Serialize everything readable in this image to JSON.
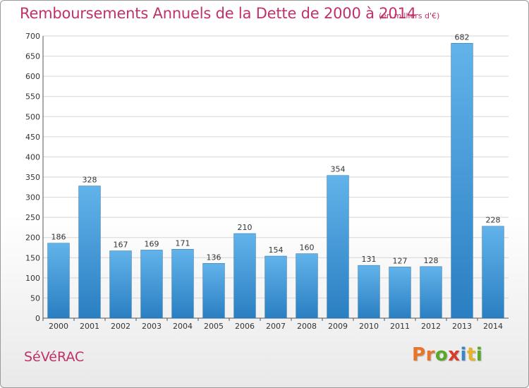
{
  "header": {
    "title": "Remboursements Annuels de la Dette de 2000 à 2014",
    "subtitle": "(en milliers d'€)"
  },
  "footer": {
    "commune": "SéVéRAC",
    "logo_letters": [
      "P",
      "r",
      "o",
      "x",
      "i",
      "t",
      "i"
    ],
    "logo_colors": [
      "#e8742a",
      "#e8742a",
      "#5aa829",
      "#d93b2b",
      "#3b86c6",
      "#e8b22a",
      "#5aa829"
    ]
  },
  "colors": {
    "accent": "#c0306a",
    "bar_light": "#62b3ea",
    "bar_dark": "#2a7fc2",
    "grid": "#d6d6d6"
  },
  "chart_data": {
    "type": "bar",
    "title": "Remboursements Annuels de la Dette de 2000 à 2014",
    "categories": [
      "2000",
      "2001",
      "2002",
      "2003",
      "2004",
      "2005",
      "2006",
      "2007",
      "2008",
      "2009",
      "2010",
      "2011",
      "2012",
      "2013",
      "2014"
    ],
    "values": [
      186,
      328,
      167,
      169,
      171,
      136,
      210,
      154,
      160,
      354,
      131,
      127,
      128,
      682,
      228
    ],
    "ylim": [
      0,
      700
    ],
    "yticks": [
      0,
      50,
      100,
      150,
      200,
      250,
      300,
      350,
      400,
      450,
      500,
      550,
      600,
      650,
      700
    ],
    "grid": true,
    "data_labels": true
  }
}
